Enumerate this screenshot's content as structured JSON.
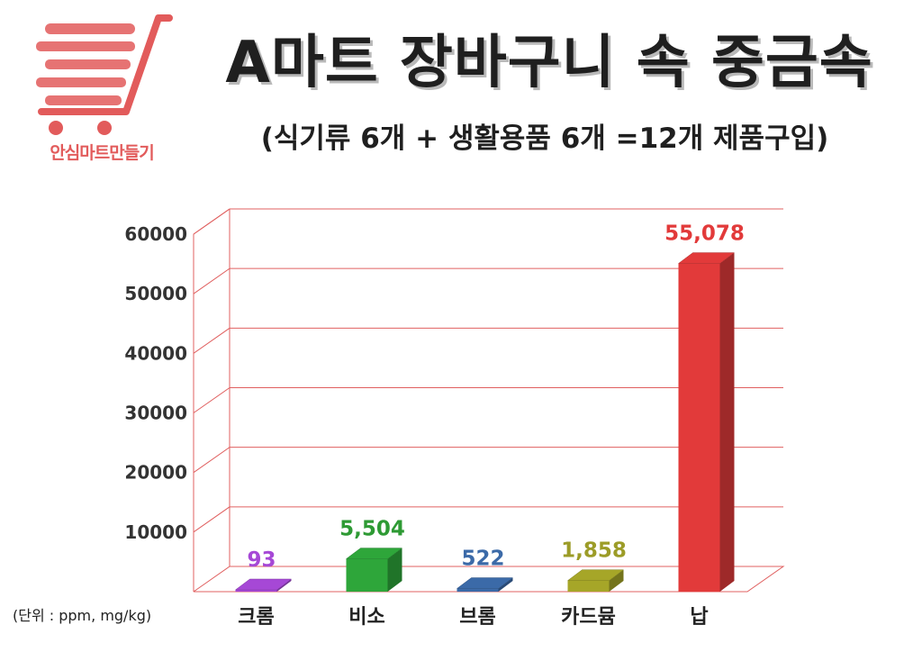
{
  "header": {
    "logo_text": "안심마트만들기",
    "title": "A마트 장바구니 속 중금속",
    "subtitle": "(식기류 6개 + 생활용품 6개 =12개 제품구입)"
  },
  "unit_note": "(단위 : ppm, mg/kg)",
  "colors": {
    "brand": "#e25b5b",
    "grid": "#e06060"
  },
  "chart_data": {
    "type": "bar",
    "title": "A마트 장바구니 속 중금속",
    "subtitle": "(식기류 6개 + 생활용품 6개 =12개 제품구입)",
    "categories": [
      "크롬",
      "비소",
      "브롬",
      "카드뮴",
      "납"
    ],
    "values": [
      93,
      5504,
      522,
      1858,
      55078
    ],
    "value_labels": [
      "93",
      "5,504",
      "522",
      "1,858",
      "55,078"
    ],
    "bar_colors": [
      "#a648d6",
      "#2ea63a",
      "#3b6aa8",
      "#a6a628",
      "#e23a3a"
    ],
    "label_colors": [
      "#a648d6",
      "#2e9a34",
      "#3b6aa8",
      "#9c9c28",
      "#e23a3a"
    ],
    "ylim": [
      0,
      60000
    ],
    "yticks": [
      "10000",
      "20000",
      "30000",
      "40000",
      "50000",
      "60000"
    ],
    "ytick_values": [
      10000,
      20000,
      30000,
      40000,
      50000,
      60000
    ],
    "ylabel": "",
    "xlabel": "",
    "grid": true,
    "style": "3d-bar"
  }
}
